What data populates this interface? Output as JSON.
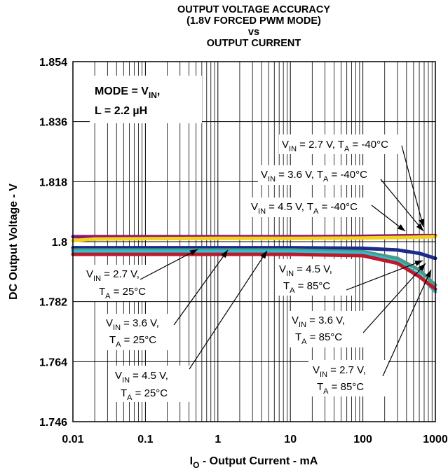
{
  "chart_data": {
    "type": "line",
    "title_lines": [
      "OUTPUT VOLTAGE ACCURACY",
      "(1.8V FORCED PWM MODE)",
      "vs",
      "OUTPUT CURRENT"
    ],
    "xlabel": {
      "main": "I",
      "sub": "O",
      "rest": " - Output Current - mA"
    },
    "ylabel": "DC Output Voltage - V",
    "x_scale": "log",
    "xlim": [
      0.01,
      1000
    ],
    "ylim": [
      1.746,
      1.854
    ],
    "x_ticks": [
      "0.01",
      "0.1",
      "1",
      "10",
      "100",
      "1000"
    ],
    "y_ticks": [
      "1.854",
      "1.836",
      "1.818",
      "1.8",
      "1.782",
      "1.764",
      "1.746"
    ],
    "grid": true,
    "conditions": {
      "line1": {
        "main": "MODE = V",
        "sub": "IN",
        "rest": ","
      },
      "line2": {
        "main": "L = 2.2 µH"
      }
    },
    "series": [
      {
        "color": "#8b1a6b",
        "x": [
          0.01,
          0.1,
          1,
          10,
          100,
          500,
          1000
        ],
        "y": [
          1.8015,
          1.8015,
          1.8015,
          1.8015,
          1.8016,
          1.8018,
          1.8018
        ]
      },
      {
        "color": "#f2d21c",
        "x": [
          0.01,
          0.02,
          0.1,
          1,
          10,
          100,
          500,
          1000
        ],
        "y": [
          1.8003,
          1.8008,
          1.8009,
          1.801,
          1.801,
          1.8011,
          1.8013,
          1.8015
        ]
      },
      {
        "color": "#1b2a8c",
        "x": [
          0.01,
          0.1,
          1,
          10,
          100,
          300,
          600,
          1000
        ],
        "y": [
          1.7982,
          1.7982,
          1.7982,
          1.7982,
          1.798,
          1.7975,
          1.7965,
          1.795
        ]
      },
      {
        "color": "#4a9a8a",
        "x": [
          0.01,
          0.1,
          1,
          10,
          100,
          300,
          600,
          1000
        ],
        "y": [
          1.7975,
          1.7975,
          1.7975,
          1.7975,
          1.797,
          1.795,
          1.7915,
          1.787
        ]
      },
      {
        "color": "#2fc0cc",
        "x": [
          0.01,
          0.1,
          1,
          10,
          100,
          300,
          600,
          1000
        ],
        "y": [
          1.797,
          1.797,
          1.797,
          1.797,
          1.7965,
          1.794,
          1.79,
          1.785
        ]
      },
      {
        "color": "#c0182a",
        "x": [
          0.01,
          0.1,
          1,
          10,
          100,
          300,
          600,
          1000
        ],
        "y": [
          1.7962,
          1.7962,
          1.7962,
          1.7962,
          1.7958,
          1.7935,
          1.7895,
          1.7858
        ]
      }
    ],
    "annotations": [
      {
        "line1": {
          "main": "V",
          "sub": "IN",
          "rest": " = 2.7 V, T",
          "sub2": "A",
          "rest2": " = -40°C"
        }
      },
      {
        "line1": {
          "main": "V",
          "sub": "IN",
          "rest": " = 3.6 V, T",
          "sub2": "A",
          "rest2": " = -40°C"
        }
      },
      {
        "line1": {
          "main": "V",
          "sub": "IN",
          "rest": " = 4.5 V, T",
          "sub2": "A",
          "rest2": " = -40°C"
        }
      },
      {
        "line1": {
          "main": "V",
          "sub": "IN",
          "rest": " = 2.7 V,"
        },
        "line2": {
          "main": "T",
          "sub": "A",
          "rest": " = 25°C"
        }
      },
      {
        "line1": {
          "main": "V",
          "sub": "IN",
          "rest": " = 3.6 V,"
        },
        "line2": {
          "main": "T",
          "sub": "A",
          "rest": " = 25°C"
        }
      },
      {
        "line1": {
          "main": "V",
          "sub": "IN",
          "rest": " = 4.5 V,"
        },
        "line2": {
          "main": "T",
          "sub": "A",
          "rest": " = 25°C"
        }
      },
      {
        "line1": {
          "main": "V",
          "sub": "IN",
          "rest": " = 4.5 V,"
        },
        "line2": {
          "main": "T",
          "sub": "A",
          "rest": " = 85°C"
        }
      },
      {
        "line1": {
          "main": "V",
          "sub": "IN",
          "rest": " = 3.6 V,"
        },
        "line2": {
          "main": "T",
          "sub": "A",
          "rest": " = 85°C"
        }
      },
      {
        "line1": {
          "main": "V",
          "sub": "IN",
          "rest": " = 2.7 V,"
        },
        "line2": {
          "main": "T",
          "sub": "A",
          "rest": " = 85°C"
        }
      }
    ]
  }
}
